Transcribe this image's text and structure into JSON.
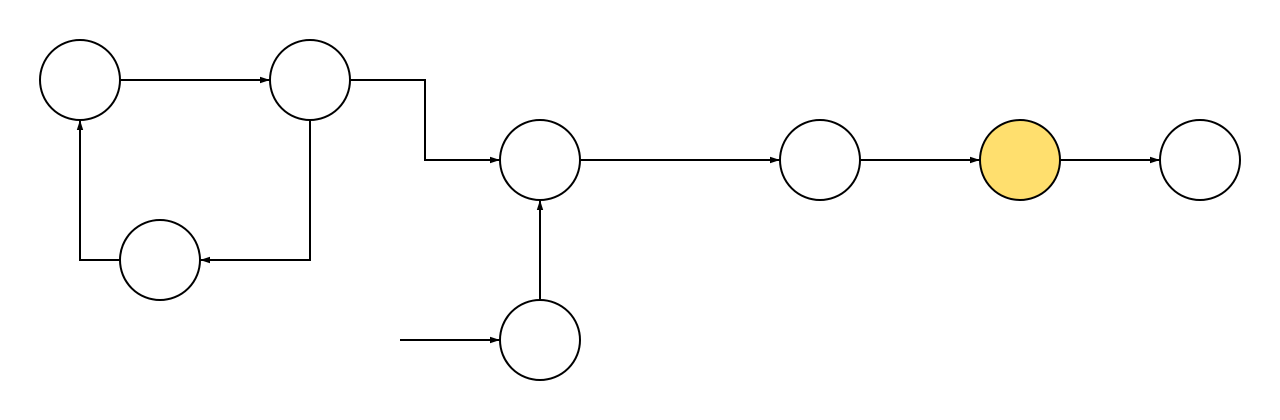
{
  "diagram": {
    "type": "flow-graph",
    "colors": {
      "background": "#ffffff",
      "stroke": "#000000",
      "default_fill": "#ffffff",
      "highlight_fill": "#ffdf6e"
    },
    "nodes": [
      {
        "id": "a",
        "label": "",
        "highlighted": false
      },
      {
        "id": "b",
        "label": "",
        "highlighted": false
      },
      {
        "id": "c",
        "label": "",
        "highlighted": false
      },
      {
        "id": "d",
        "label": "",
        "highlighted": false
      },
      {
        "id": "e",
        "label": "",
        "highlighted": false
      },
      {
        "id": "f",
        "label": "",
        "highlighted": false
      },
      {
        "id": "g",
        "label": "",
        "highlighted": true
      },
      {
        "id": "h",
        "label": "",
        "highlighted": false
      }
    ],
    "edges": [
      {
        "from": "a",
        "to": "b"
      },
      {
        "from": "b",
        "to": "c"
      },
      {
        "from": "c",
        "to": "a"
      },
      {
        "from": "b",
        "to": "d"
      },
      {
        "from": "e",
        "to": "d"
      },
      {
        "from": "external-input",
        "to": "e"
      },
      {
        "from": "d",
        "to": "f"
      },
      {
        "from": "f",
        "to": "g"
      },
      {
        "from": "g",
        "to": "h"
      }
    ]
  }
}
